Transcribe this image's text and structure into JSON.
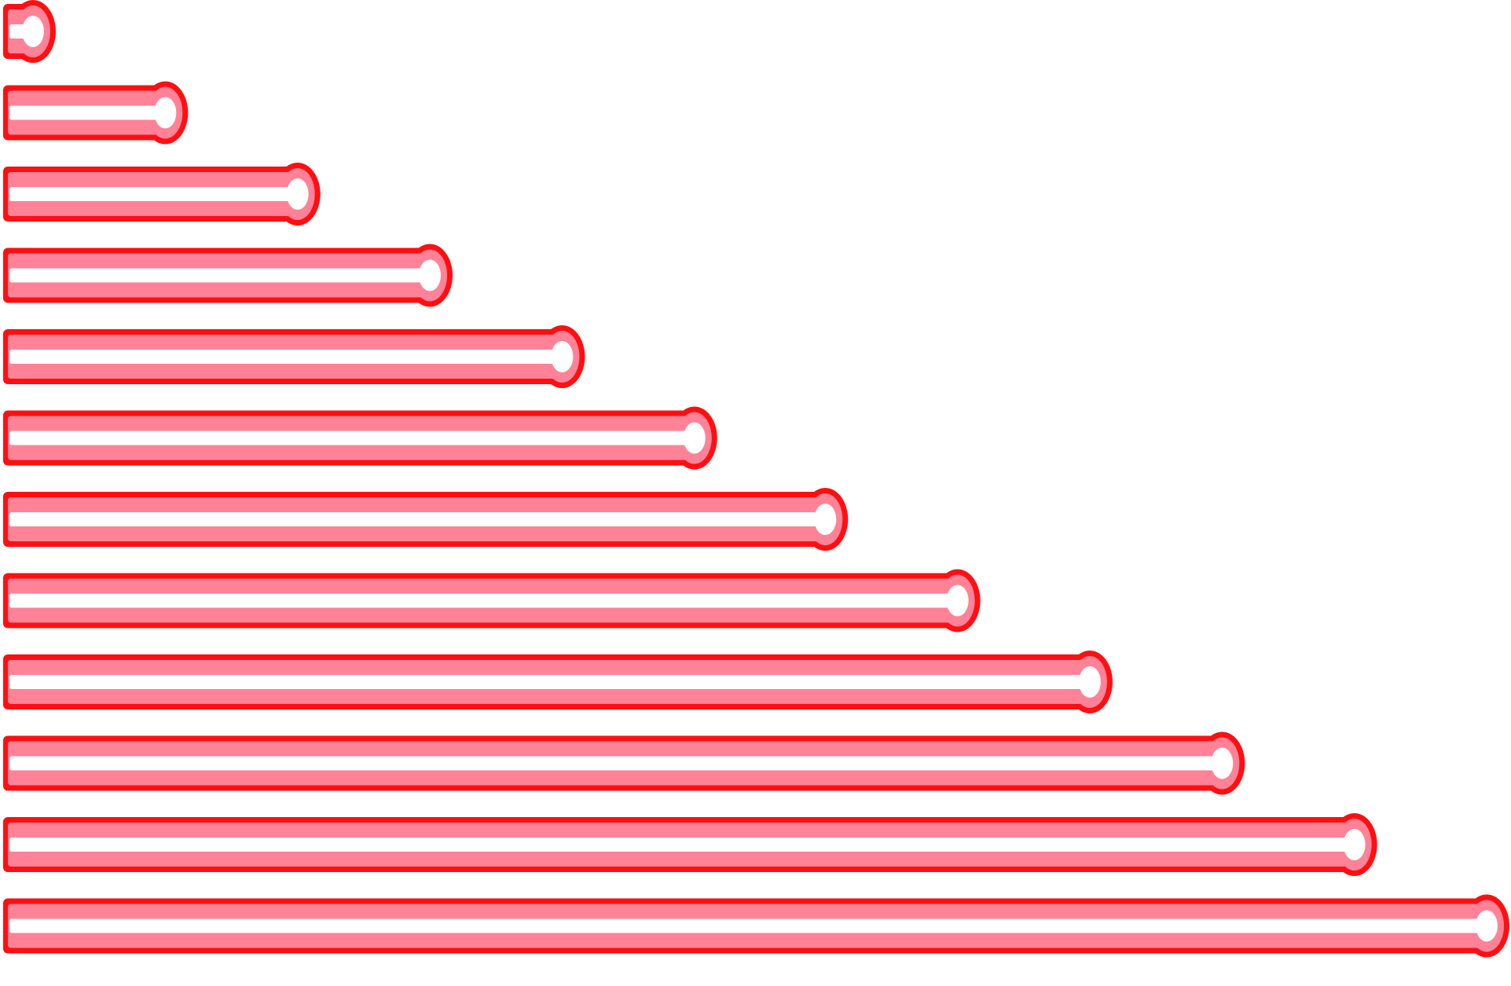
{
  "canvas": {
    "background": "#ffffff"
  },
  "bars": {
    "count": 12,
    "fill_fraction": [
      0.0,
      0.091,
      0.182,
      0.273,
      0.364,
      0.455,
      0.545,
      0.636,
      0.727,
      0.818,
      0.909,
      1.0
    ],
    "colors": {
      "outline": "#ff0f12",
      "body": "#ff8296",
      "highlight": "#ffffff"
    },
    "cap_shape": "rounded-bulb"
  }
}
